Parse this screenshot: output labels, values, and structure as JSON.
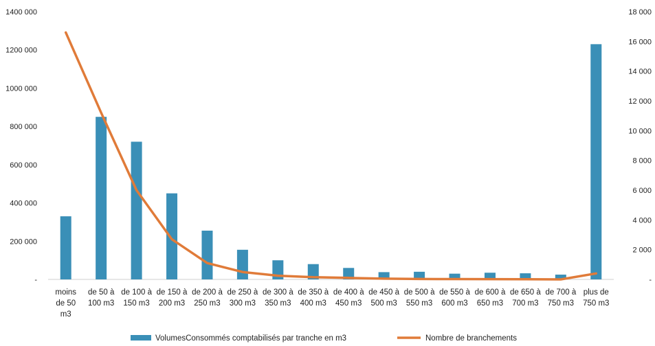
{
  "chart_data": {
    "type": "bar+line",
    "categories": [
      [
        "moins",
        "de 50",
        "m3"
      ],
      [
        "de 50 à",
        "100 m3"
      ],
      [
        "de 100 à",
        "150 m3"
      ],
      [
        "de 150 à",
        "200 m3"
      ],
      [
        "de 200 à",
        "250 m3"
      ],
      [
        "de 250 à",
        "300 m3"
      ],
      [
        "de 300 à",
        "350 m3"
      ],
      [
        "de 350 à",
        "400 m3"
      ],
      [
        "de 400 à",
        "450 m3"
      ],
      [
        "de 450 à",
        "500 m3"
      ],
      [
        "de 500 à",
        "550 m3"
      ],
      [
        "de 550 à",
        "600 m3"
      ],
      [
        "de 600 à",
        "650 m3"
      ],
      [
        "de 650 à",
        "700 m3"
      ],
      [
        "de 700 à",
        "750 m3"
      ],
      [
        "plus de",
        "750 m3"
      ]
    ],
    "series": [
      {
        "name": "VolumesConsommés comptabilisés par tranche en m3",
        "type": "bar",
        "axis": "left",
        "color": "#3a8fb7",
        "values": [
          330000,
          850000,
          720000,
          450000,
          255000,
          155000,
          100000,
          80000,
          60000,
          38000,
          40000,
          30000,
          35000,
          32000,
          25000,
          1230000
        ]
      },
      {
        "name": "Nombre de branchements",
        "type": "line",
        "axis": "right",
        "color": "#e07b39",
        "values": [
          16600,
          11200,
          6000,
          2700,
          1100,
          500,
          250,
          150,
          100,
          50,
          30,
          25,
          20,
          15,
          0,
          400
        ]
      }
    ],
    "y_left": {
      "ylim": [
        0,
        1400000
      ],
      "ticks": [
        "-",
        "200 000",
        "400 000",
        "600 000",
        "800 000",
        "1000 000",
        "1200 000",
        "1400 000"
      ]
    },
    "y_right": {
      "ylim": [
        0,
        18000
      ],
      "ticks": [
        "-",
        "2 000",
        "4 000",
        "6 000",
        "8 000",
        "10 000",
        "12 000",
        "14 000",
        "16 000",
        "18 000"
      ]
    },
    "grid": false,
    "legend_position": "bottom"
  }
}
